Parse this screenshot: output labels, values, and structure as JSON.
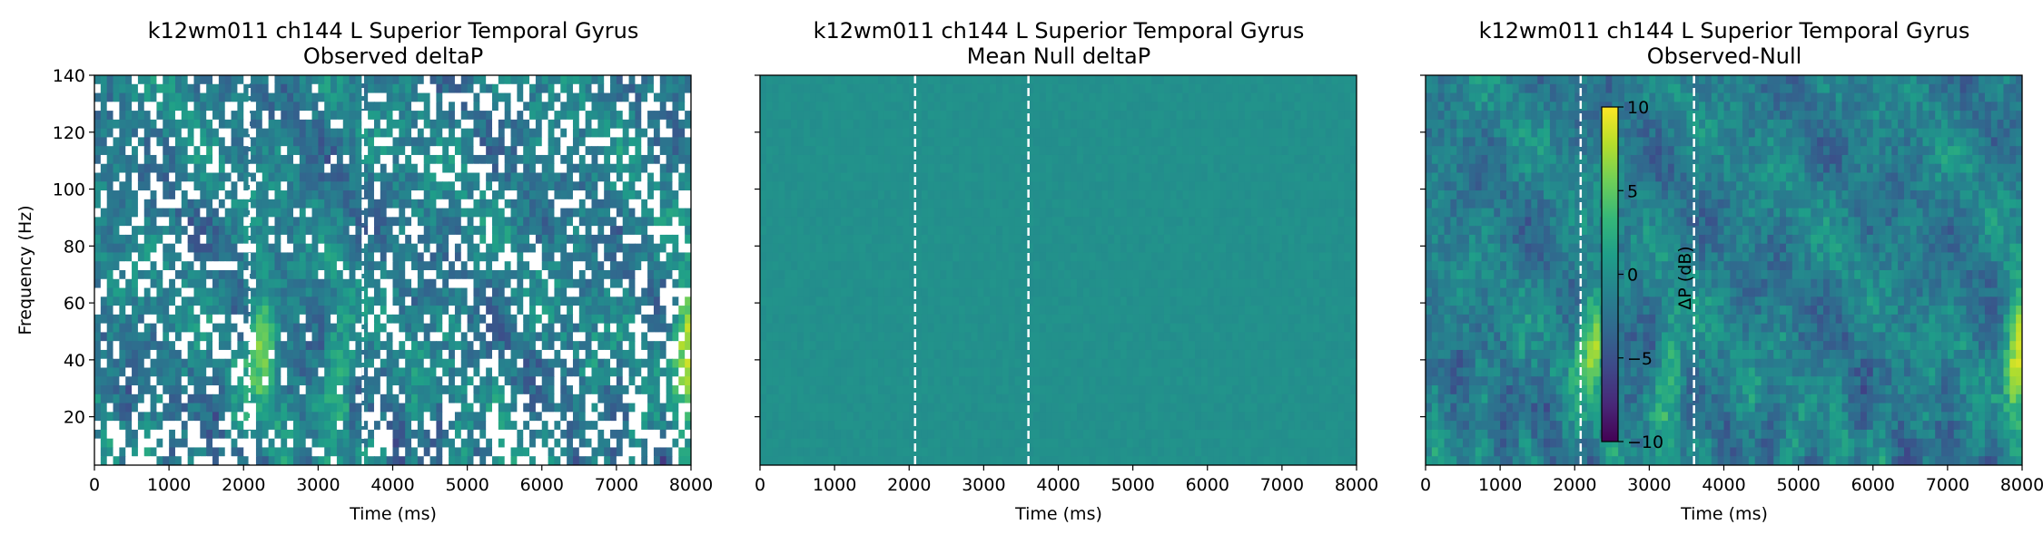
{
  "chart_data": [
    {
      "type": "heatmap",
      "title": "k12wm011 ch144 L Superior Temporal Gyrus",
      "subtitle": "Observed deltaP",
      "xlabel": "Time (ms)",
      "ylabel": "Frequency (Hz)",
      "xlim": [
        0,
        8000
      ],
      "ylim": [
        3,
        140
      ],
      "x_ticks": [
        0,
        1000,
        2000,
        3000,
        4000,
        5000,
        6000,
        7000,
        8000
      ],
      "y_ticks": [
        20,
        40,
        60,
        80,
        100,
        120,
        140
      ],
      "y_tick_labels_shown": true,
      "event_lines_ms": [
        2080,
        3600
      ],
      "colormap": "viridis",
      "masked_regions": "white (non-significant) pixels scattered throughout",
      "hotspots": [
        {
          "x_ms": 2250,
          "f_hz": 45,
          "value_db": 8
        },
        {
          "x_ms": 7950,
          "f_hz": 45,
          "value_db": 10
        },
        {
          "x_ms": 3300,
          "f_hz": 35,
          "value_db": 5
        }
      ]
    },
    {
      "type": "heatmap",
      "title": "k12wm011 ch144 L Superior Temporal Gyrus",
      "subtitle": "Mean Null deltaP",
      "xlabel": "Time (ms)",
      "ylabel": "",
      "xlim": [
        0,
        8000
      ],
      "ylim": [
        3,
        140
      ],
      "x_ticks": [
        0,
        1000,
        2000,
        3000,
        4000,
        5000,
        6000,
        7000,
        8000
      ],
      "y_ticks": [
        20,
        40,
        60,
        80,
        100,
        120,
        140
      ],
      "y_tick_labels_shown": false,
      "event_lines_ms": [
        2080,
        3600
      ],
      "colormap": "viridis",
      "uniform_value_db": 0
    },
    {
      "type": "heatmap",
      "title": "k12wm011 ch144 L Superior Temporal Gyrus",
      "subtitle": "Observed-Null",
      "xlabel": "Time (ms)",
      "ylabel": "",
      "xlim": [
        0,
        8000
      ],
      "ylim": [
        3,
        140
      ],
      "x_ticks": [
        0,
        1000,
        2000,
        3000,
        4000,
        5000,
        6000,
        7000,
        8000
      ],
      "y_ticks": [
        20,
        40,
        60,
        80,
        100,
        120,
        140
      ],
      "y_tick_labels_shown": false,
      "event_lines_ms": [
        2080,
        3600
      ],
      "colormap": "viridis",
      "hotspots": [
        {
          "x_ms": 2250,
          "f_hz": 45,
          "value_db": 8
        },
        {
          "x_ms": 7950,
          "f_hz": 45,
          "value_db": 10
        },
        {
          "x_ms": 3300,
          "f_hz": 35,
          "value_db": 5
        }
      ],
      "colorbar": {
        "label": "ΔP (dB)",
        "range": [
          -10,
          10
        ],
        "ticks": [
          10,
          5,
          0,
          -5,
          -10
        ],
        "tick_labels": [
          "10",
          "5",
          "0",
          "−5",
          "−10"
        ],
        "placement": "inset, left-center of panel"
      }
    }
  ],
  "colors": {
    "viridis": [
      "#440154",
      "#482878",
      "#3e4989",
      "#31688e",
      "#26828e",
      "#1f9e89",
      "#35b779",
      "#6ece58",
      "#b5de2b",
      "#fde725"
    ],
    "event_line": "#ffffff",
    "mask": "#ffffff"
  }
}
